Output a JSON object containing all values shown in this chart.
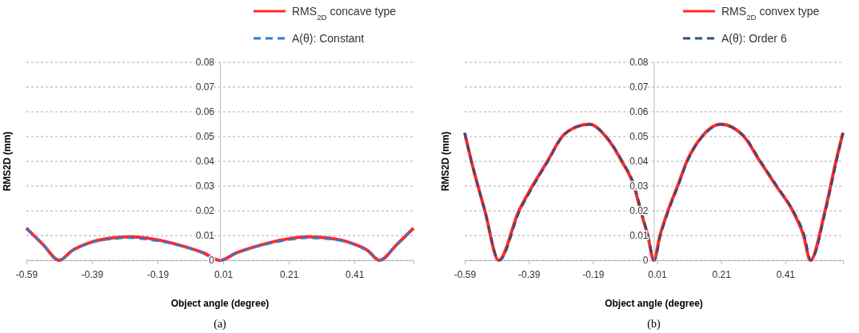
{
  "chart_data": [
    {
      "type": "line",
      "xlabel": "Object angle (degree)",
      "ylabel": "RMS2D (mm)",
      "xlim": [
        -0.59,
        0.59
      ],
      "xticks": [
        -0.59,
        -0.39,
        -0.19,
        0.01,
        0.21,
        0.41
      ],
      "ylim": [
        0,
        0.08
      ],
      "yticks": [
        0,
        0.01,
        0.02,
        0.03,
        0.04,
        0.05,
        0.06,
        0.07,
        0.08
      ],
      "grid": "y",
      "legend": "top right",
      "marker": "none",
      "annotations": [
        "(a)"
      ],
      "series": [
        {
          "name": "RMS$_{2D}$ concave type",
          "color": "#ff2a2a",
          "line_style": "solid",
          "x": [
            -0.59,
            -0.54,
            -0.49,
            -0.45,
            -0.4,
            -0.33,
            -0.275,
            -0.2,
            -0.12,
            -0.05,
            0,
            0.05,
            0.12,
            0.2,
            0.27,
            0.33,
            0.4,
            0.45,
            0.486,
            0.54,
            0.59
          ],
          "values": [
            0.013,
            0.0065,
            0,
            0.004,
            0.007,
            0.009,
            0.0095,
            0.0085,
            0.006,
            0.003,
            0,
            0.003,
            0.006,
            0.0085,
            0.0095,
            0.009,
            0.007,
            0.004,
            0,
            0.0065,
            0.013
          ]
        },
        {
          "name": "A(θ): Constant",
          "color": "#2e7bcf",
          "line_style": "dashed",
          "x": [
            -0.59,
            -0.54,
            -0.49,
            -0.45,
            -0.4,
            -0.33,
            -0.275,
            -0.2,
            -0.12,
            -0.05,
            0,
            0.05,
            0.12,
            0.2,
            0.27,
            0.33,
            0.4,
            0.45,
            0.486,
            0.54,
            0.59
          ],
          "values": [
            0.013,
            0.0065,
            0,
            0.0038,
            0.0068,
            0.0086,
            0.009,
            0.008,
            0.0058,
            0.0028,
            0,
            0.0028,
            0.0058,
            0.008,
            0.009,
            0.0086,
            0.0068,
            0.0038,
            0,
            0.0065,
            0.013
          ]
        }
      ]
    },
    {
      "type": "line",
      "xlabel": "Object angle (degree)",
      "ylabel": "RMS2D (mm)",
      "xlim": [
        -0.59,
        0.59
      ],
      "xticks": [
        -0.59,
        -0.39,
        -0.19,
        0.01,
        0.21,
        0.41
      ],
      "ylim": [
        0,
        0.08
      ],
      "yticks": [
        0,
        0.01,
        0.02,
        0.03,
        0.04,
        0.05,
        0.06,
        0.07,
        0.08
      ],
      "grid": "y",
      "legend": "top right",
      "marker": "none",
      "annotations": [
        "(b)"
      ],
      "series": [
        {
          "name": "RMS$_{2D}$ convex type",
          "color": "#ff2a2a",
          "line_style": "solid",
          "x": [
            -0.59,
            -0.569,
            -0.527,
            -0.484,
            -0.421,
            -0.379,
            -0.332,
            -0.286,
            -0.24,
            -0.201,
            -0.15,
            -0.1,
            -0.062,
            -0.041,
            -0.019,
            0,
            0.019,
            0.044,
            0.074,
            0.103,
            0.15,
            0.209,
            0.281,
            0.331,
            0.382,
            0.433,
            0.467,
            0.488,
            0.534,
            0.568,
            0.59
          ],
          "values": [
            0.0515,
            0.04,
            0.02,
            0,
            0.02,
            0.03,
            0.04,
            0.05,
            0.054,
            0.055,
            0.05,
            0.04,
            0.03,
            0.02,
            0.01,
            0,
            0.01,
            0.02,
            0.03,
            0.04,
            0.05,
            0.055,
            0.05,
            0.04,
            0.03,
            0.02,
            0.01,
            0,
            0.02,
            0.04,
            0.0515
          ]
        },
        {
          "name": "A(θ): Order 6",
          "color": "#2b4f80",
          "line_style": "dashed",
          "x": [
            -0.59,
            -0.569,
            -0.527,
            -0.482,
            -0.418,
            -0.376,
            -0.33,
            -0.285,
            -0.24,
            -0.201,
            -0.148,
            -0.098,
            -0.06,
            -0.039,
            -0.018,
            0.002,
            0.021,
            0.046,
            0.076,
            0.105,
            0.152,
            0.21,
            0.283,
            0.333,
            0.384,
            0.435,
            0.47,
            0.49,
            0.536,
            0.57,
            0.59
          ],
          "values": [
            0.0515,
            0.04,
            0.02,
            0,
            0.02,
            0.03,
            0.04,
            0.05,
            0.054,
            0.0548,
            0.05,
            0.04,
            0.03,
            0.02,
            0.01,
            0,
            0.01,
            0.02,
            0.03,
            0.04,
            0.05,
            0.0548,
            0.05,
            0.04,
            0.03,
            0.02,
            0.01,
            0,
            0.02,
            0.04,
            0.0515
          ]
        }
      ]
    }
  ]
}
